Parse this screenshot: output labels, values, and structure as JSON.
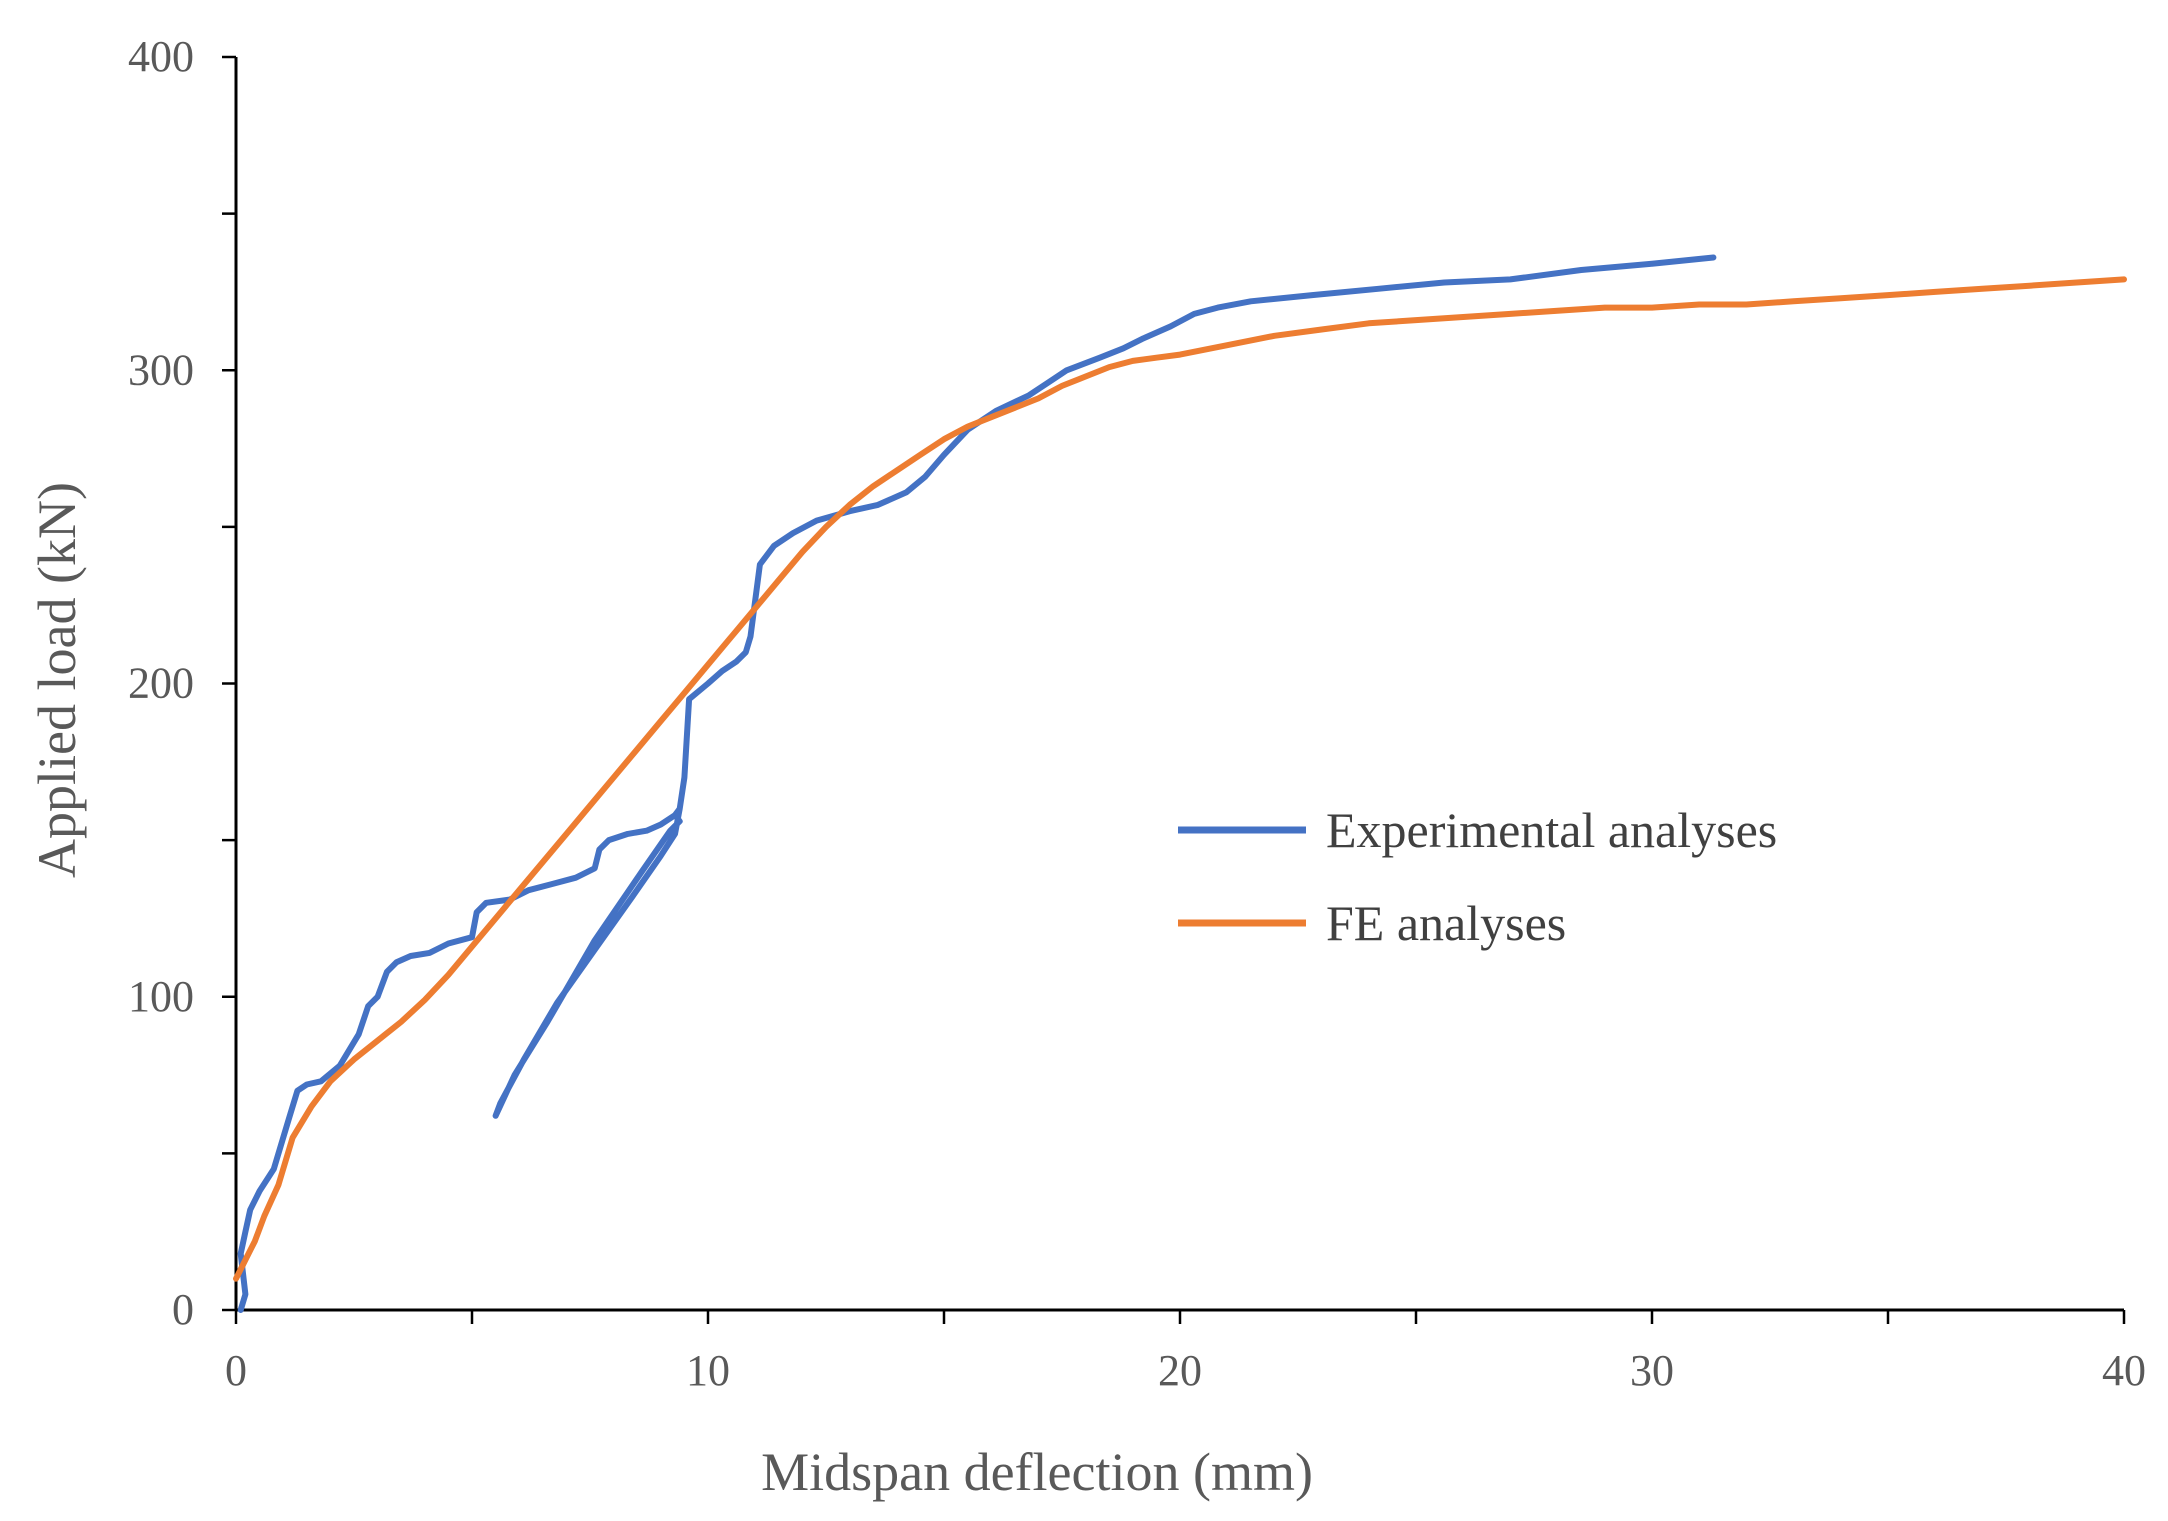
{
  "chart_data": {
    "type": "line",
    "title": "",
    "xlabel": "Midspan deflection (mm)",
    "ylabel": "Applied load (kN)",
    "xlim": [
      0,
      40
    ],
    "ylim": [
      0,
      400
    ],
    "x_ticks": [
      0,
      10,
      20,
      30,
      40
    ],
    "y_ticks": [
      0,
      100,
      200,
      300,
      400
    ],
    "x_minor_step": 5,
    "y_minor_step": 50,
    "grid": false,
    "legend_position": "center-right",
    "series": [
      {
        "name": "Experimental analyses",
        "color": "#4472C4",
        "x": [
          0.1,
          0.2,
          0.1,
          0.2,
          0.3,
          0.5,
          0.8,
          1.1,
          1.3,
          1.5,
          1.8,
          2.2,
          2.6,
          2.8,
          3.0,
          3.2,
          3.4,
          3.7,
          4.1,
          4.5,
          5.0,
          5.1,
          5.3,
          5.8,
          6.2,
          6.7,
          7.2,
          7.6,
          7.7,
          7.9,
          8.3,
          8.7,
          9.0,
          9.3,
          9.4,
          9.3,
          9.4,
          9.2,
          8.6,
          7.6,
          6.6,
          5.9,
          5.5,
          5.6,
          6.1,
          6.8,
          7.6,
          8.4,
          9.0,
          9.3,
          9.4,
          9.5,
          9.6,
          10.0,
          10.3,
          10.6,
          10.8,
          10.9,
          11.1,
          11.4,
          11.8,
          12.3,
          13.0,
          13.6,
          14.2,
          14.6,
          15.0,
          15.5,
          16.1,
          16.8,
          17.6,
          18.3,
          18.8,
          19.2,
          19.8,
          20.3,
          20.8,
          21.5,
          22.8,
          24.2,
          25.6,
          27.0,
          28.5,
          30.0,
          31.3
        ],
        "y": [
          0,
          5,
          18,
          25,
          32,
          38,
          45,
          60,
          70,
          72,
          73,
          78,
          88,
          97,
          100,
          108,
          111,
          113,
          114,
          117,
          119,
          127,
          130,
          131,
          134,
          136,
          138,
          141,
          147,
          150,
          152,
          153,
          155,
          158,
          160,
          158,
          156,
          153,
          140,
          118,
          92,
          75,
          62,
          66,
          80,
          98,
          115,
          132,
          145,
          152,
          160,
          170,
          195,
          200,
          204,
          207,
          210,
          215,
          238,
          244,
          248,
          252,
          255,
          257,
          261,
          266,
          273,
          281,
          287,
          292,
          300,
          304,
          307,
          310,
          314,
          318,
          320,
          322,
          324,
          326,
          328,
          329,
          332,
          334,
          336
        ]
      },
      {
        "name": "FE analyses",
        "color": "#ED7D31",
        "x": [
          0,
          0.2,
          0.4,
          0.6,
          0.9,
          1.2,
          1.6,
          2.0,
          2.5,
          3.0,
          3.5,
          4.0,
          4.5,
          5.0,
          5.5,
          6.0,
          6.5,
          7.0,
          7.5,
          8.0,
          8.5,
          9.0,
          9.5,
          10.0,
          10.5,
          11.0,
          11.5,
          12.0,
          12.5,
          13.0,
          13.5,
          14.0,
          14.5,
          15.0,
          15.5,
          16.0,
          16.5,
          17.0,
          17.5,
          18.0,
          18.5,
          19.0,
          19.5,
          20.0,
          21.0,
          22.0,
          23.0,
          24.0,
          25.0,
          26.0,
          27.0,
          28.0,
          29.0,
          30.0,
          31.0,
          32.0,
          33.0,
          34.0,
          35.0,
          36.0,
          37.0,
          38.0,
          39.0,
          40.0
        ],
        "y": [
          10,
          16,
          22,
          30,
          40,
          55,
          65,
          73,
          80,
          86,
          92,
          99,
          107,
          116,
          125,
          134,
          143,
          152,
          161,
          170,
          179,
          188,
          197,
          206,
          215,
          224,
          233,
          242,
          250,
          257,
          263,
          268,
          273,
          278,
          282,
          285,
          288,
          291,
          295,
          298,
          301,
          303,
          304,
          305,
          308,
          311,
          313,
          315,
          316,
          317,
          318,
          319,
          320,
          320,
          321,
          321,
          322,
          323,
          324,
          325,
          326,
          327,
          328,
          329
        ]
      }
    ]
  }
}
